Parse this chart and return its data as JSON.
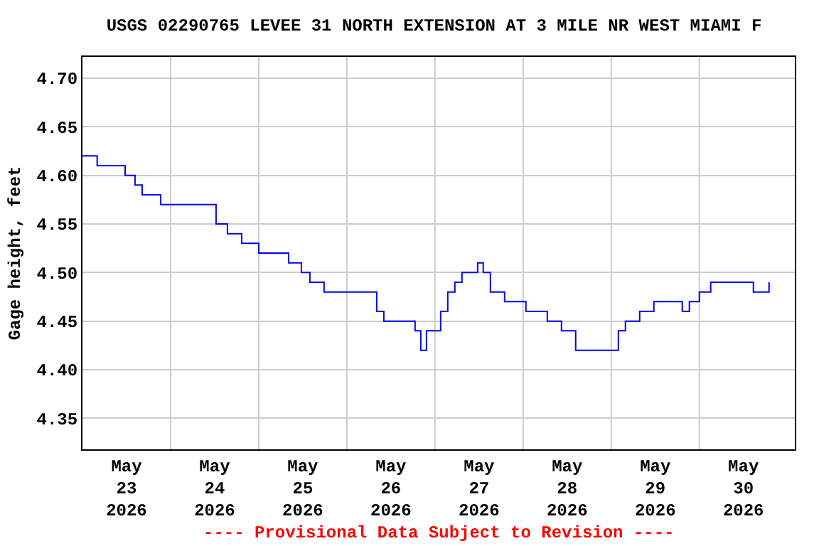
{
  "chart_data": {
    "type": "step",
    "title": "USGS 02290765 LEVEE 31 NORTH EXTENSION AT 3 MILE NR WEST MIAMI F",
    "ylabel": "Gage height, feet",
    "annotations": [
      "---- Provisional Data Subject to Revision ----"
    ],
    "x": [
      "2026-05-23T00:00",
      "2026-05-23T03:52",
      "2026-05-23T04:00",
      "2026-05-23T10:27",
      "2026-05-23T11:37",
      "2026-05-23T14:19",
      "2026-05-23T16:15",
      "2026-05-23T21:17",
      "2026-05-24T11:37",
      "2026-05-24T12:23",
      "2026-05-24T15:29",
      "2026-05-24T19:21",
      "2026-05-25T00:00",
      "2026-05-25T06:58",
      "2026-05-25T08:08",
      "2026-05-25T11:37",
      "2026-05-25T13:56",
      "2026-05-25T17:48",
      "2026-05-26T02:19",
      "2026-05-26T08:08",
      "2026-05-26T10:04",
      "2026-05-26T13:56",
      "2026-05-26T18:35",
      "2026-05-26T20:08",
      "2026-05-26T21:41",
      "2026-05-26T23:37",
      "2026-05-27T01:33",
      "2026-05-27T03:29",
      "2026-05-27T05:25",
      "2026-05-27T07:21",
      "2026-05-27T11:37",
      "2026-05-27T13:09",
      "2026-05-27T15:06",
      "2026-05-27T18:58",
      "2026-05-28T00:46",
      "2026-05-28T06:35",
      "2026-05-28T10:27",
      "2026-05-28T14:19",
      "2026-05-28T23:14",
      "2026-05-29T01:57",
      "2026-05-29T03:52",
      "2026-05-29T07:45",
      "2026-05-29T11:37",
      "2026-05-29T17:25",
      "2026-05-29T19:21",
      "2026-05-29T21:17",
      "2026-05-30T00:00",
      "2026-05-30T03:06",
      "2026-05-30T12:46",
      "2026-05-30T14:43",
      "2026-05-30T18:35",
      "2026-05-30T18:58"
    ],
    "series": [
      {
        "color": "#0000ff",
        "values": [
          4.62,
          4.62,
          4.61,
          4.61,
          4.6,
          4.59,
          4.58,
          4.57,
          4.57,
          4.55,
          4.54,
          4.53,
          4.52,
          4.52,
          4.51,
          4.5,
          4.49,
          4.48,
          4.48,
          4.46,
          4.45,
          4.45,
          4.44,
          4.42,
          4.44,
          4.44,
          4.46,
          4.48,
          4.49,
          4.5,
          4.51,
          4.5,
          4.48,
          4.47,
          4.46,
          4.45,
          4.44,
          4.42,
          4.42,
          4.44,
          4.45,
          4.46,
          4.47,
          4.47,
          4.46,
          4.47,
          4.48,
          4.49,
          4.49,
          4.48,
          4.48,
          4.49
        ]
      }
    ],
    "xlim": [
      "2026-05-23T00:00",
      "2026-05-31T02:00"
    ],
    "xticks": [
      {
        "value": "2026-05-23T12:00",
        "label": "May\n23\n2026"
      },
      {
        "value": "2026-05-24T00:00",
        "label": null
      },
      {
        "value": "2026-05-24T12:00",
        "label": "May\n24\n2026"
      },
      {
        "value": "2026-05-25T00:00",
        "label": null
      },
      {
        "value": "2026-05-25T12:00",
        "label": "May\n25\n2026"
      },
      {
        "value": "2026-05-26T00:00",
        "label": null
      },
      {
        "value": "2026-05-26T12:00",
        "label": "May\n26\n2026"
      },
      {
        "value": "2026-05-27T00:00",
        "label": null
      },
      {
        "value": "2026-05-27T12:00",
        "label": "May\n27\n2026"
      },
      {
        "value": "2026-05-28T00:00",
        "label": null
      },
      {
        "value": "2026-05-28T12:00",
        "label": "May\n28\n2026"
      },
      {
        "value": "2026-05-29T00:00",
        "label": null
      },
      {
        "value": "2026-05-29T12:00",
        "label": "May\n29\n2026"
      },
      {
        "value": "2026-05-30T00:00",
        "label": null
      },
      {
        "value": "2026-05-30T12:00",
        "label": "May\n30\n2026"
      }
    ],
    "ylim": [
      4.318,
      4.722
    ],
    "yticks": [
      {
        "value": 4.35,
        "label": "4.35"
      },
      {
        "value": 4.4,
        "label": "4.40"
      },
      {
        "value": 4.45,
        "label": "4.45"
      },
      {
        "value": 4.5,
        "label": "4.50"
      },
      {
        "value": 4.55,
        "label": "4.55"
      },
      {
        "value": 4.6,
        "label": "4.60"
      },
      {
        "value": 4.65,
        "label": "4.65"
      },
      {
        "value": 4.7,
        "label": "4.70"
      }
    ],
    "grid": "x_minor_y",
    "line_style": "solid"
  }
}
